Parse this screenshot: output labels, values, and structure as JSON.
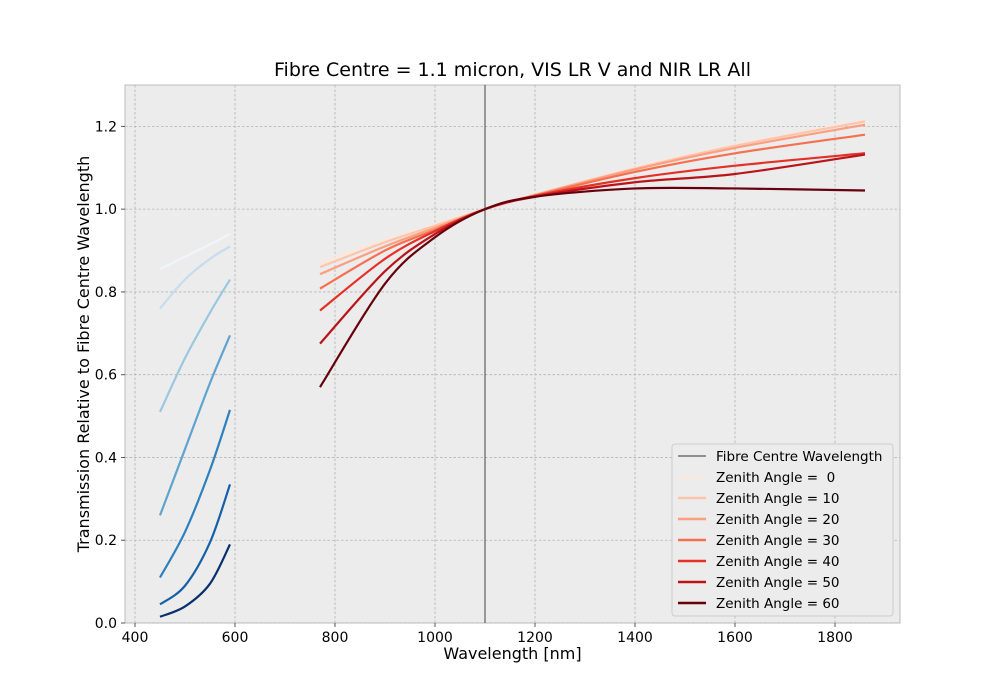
{
  "chart_data": {
    "type": "line",
    "title": "Fibre Centre = 1.1 micron, VIS LR V and NIR LR All",
    "xlabel": "Wavelength [nm]",
    "ylabel": "Transmission Relative to Fibre Centre Wavelength",
    "xlim": [
      380,
      1930
    ],
    "ylim": [
      0,
      1.3
    ],
    "xticks": [
      400,
      600,
      800,
      1000,
      1200,
      1400,
      1600,
      1800
    ],
    "yticks": [
      0.0,
      0.2,
      0.4,
      0.6,
      0.8,
      1.0,
      1.2
    ],
    "grid": true,
    "legend_position": "lower-right",
    "vline": {
      "name": "Fibre Centre Wavelength",
      "x": 1100,
      "color": "#333333"
    },
    "vis_series": [
      {
        "angle": 0,
        "color": "#f0f5fb",
        "x": [
          450,
          500,
          550,
          590
        ],
        "y": [
          0.855,
          0.885,
          0.915,
          0.94
        ]
      },
      {
        "angle": 10,
        "color": "#c7dcef",
        "x": [
          450,
          500,
          550,
          590
        ],
        "y": [
          0.76,
          0.83,
          0.88,
          0.91
        ]
      },
      {
        "angle": 20,
        "color": "#9ac8e0",
        "x": [
          450,
          500,
          550,
          590
        ],
        "y": [
          0.51,
          0.64,
          0.75,
          0.83
        ]
      },
      {
        "angle": 30,
        "color": "#5fa3d0",
        "x": [
          450,
          500,
          550,
          590
        ],
        "y": [
          0.26,
          0.42,
          0.58,
          0.695
        ]
      },
      {
        "angle": 40,
        "color": "#3080bd",
        "x": [
          450,
          500,
          550,
          590
        ],
        "y": [
          0.11,
          0.22,
          0.37,
          0.515
        ]
      },
      {
        "angle": 50,
        "color": "#1660a8",
        "x": [
          450,
          500,
          550,
          590
        ],
        "y": [
          0.045,
          0.09,
          0.195,
          0.335
        ]
      },
      {
        "angle": 60,
        "color": "#08306b",
        "x": [
          450,
          500,
          550,
          590
        ],
        "y": [
          0.015,
          0.04,
          0.095,
          0.19
        ]
      }
    ],
    "nir_series": [
      {
        "name": "Zenith Angle =  0",
        "color": "#fee6da",
        "x": [
          770,
          900,
          1000,
          1100,
          1200,
          1400,
          1600,
          1860
        ],
        "y": [
          0.87,
          0.925,
          0.962,
          1.0,
          1.035,
          1.1,
          1.155,
          1.215
        ]
      },
      {
        "name": "Zenith Angle = 10",
        "color": "#fcc5ab",
        "x": [
          770,
          900,
          1000,
          1100,
          1200,
          1400,
          1600,
          1860
        ],
        "y": [
          0.86,
          0.92,
          0.96,
          1.0,
          1.035,
          1.098,
          1.153,
          1.212
        ]
      },
      {
        "name": "Zenith Angle = 20",
        "color": "#fc9e80",
        "x": [
          770,
          900,
          1000,
          1100,
          1200,
          1400,
          1600,
          1860
        ],
        "y": [
          0.843,
          0.91,
          0.955,
          1.0,
          1.034,
          1.096,
          1.148,
          1.204
        ]
      },
      {
        "name": "Zenith Angle = 30",
        "color": "#f6704f",
        "x": [
          770,
          900,
          1000,
          1100,
          1200,
          1400,
          1600,
          1860
        ],
        "y": [
          0.808,
          0.9,
          0.95,
          1.0,
          1.033,
          1.09,
          1.135,
          1.18
        ]
      },
      {
        "name": "Zenith Angle = 40",
        "color": "#e43027",
        "x": [
          770,
          900,
          1000,
          1100,
          1200,
          1400,
          1600,
          1860
        ],
        "y": [
          0.755,
          0.88,
          0.947,
          1.0,
          1.032,
          1.075,
          1.105,
          1.135
        ]
      },
      {
        "name": "Zenith Angle = 50",
        "color": "#b91419",
        "x": [
          770,
          900,
          1000,
          1100,
          1200,
          1400,
          1600,
          1860
        ],
        "y": [
          0.675,
          0.85,
          0.94,
          1.0,
          1.03,
          1.065,
          1.085,
          1.132
        ]
      },
      {
        "name": "Zenith Angle = 60",
        "color": "#67000d",
        "x": [
          770,
          900,
          1000,
          1100,
          1200,
          1400,
          1600,
          1860
        ],
        "y": [
          0.57,
          0.82,
          0.932,
          1.0,
          1.03,
          1.05,
          1.05,
          1.045
        ]
      }
    ]
  }
}
